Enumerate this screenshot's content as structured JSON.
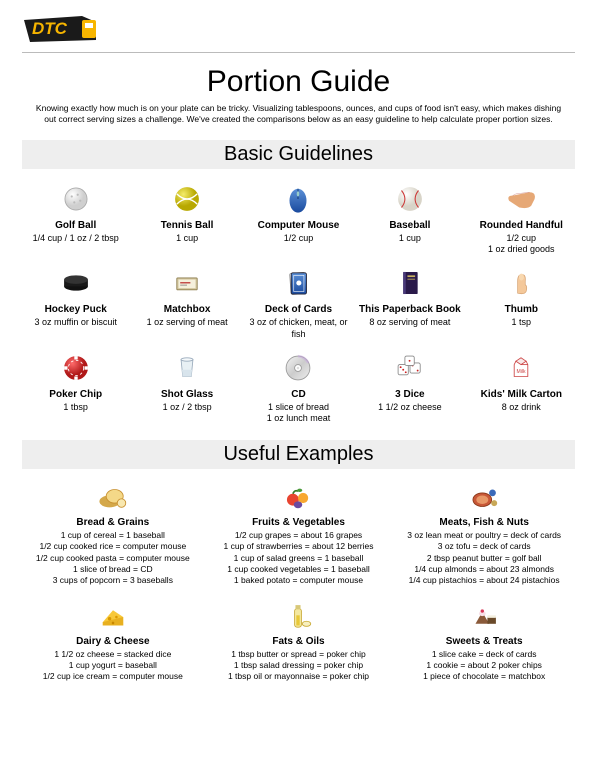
{
  "logo_text": "DTC",
  "title": "Portion Guide",
  "intro": "Knowing exactly how much is on your plate can be tricky. Visualizing tablespoons, ounces, and cups of food isn't easy, which makes dishing out correct serving sizes a challenge. We've created the comparisons below as an easy guideline to help calculate proper portion sizes.",
  "section1_title": "Basic Guidelines",
  "section2_title": "Useful Examples",
  "guidelines": [
    {
      "icon": "golfball",
      "title": "Golf Ball",
      "desc": "1/4 cup / 1 oz / 2 tbsp"
    },
    {
      "icon": "tennisball",
      "title": "Tennis Ball",
      "desc": "1 cup"
    },
    {
      "icon": "mouse",
      "title": "Computer Mouse",
      "desc": "1/2 cup"
    },
    {
      "icon": "baseball",
      "title": "Baseball",
      "desc": "1 cup"
    },
    {
      "icon": "hand",
      "title": "Rounded Handful",
      "desc": "1/2 cup\n1 oz dried goods"
    },
    {
      "icon": "puck",
      "title": "Hockey Puck",
      "desc": "3 oz muffin or biscuit"
    },
    {
      "icon": "matchbox",
      "title": "Matchbox",
      "desc": "1 oz serving of meat"
    },
    {
      "icon": "cards",
      "title": "Deck of Cards",
      "desc": "3 oz of chicken, meat, or fish"
    },
    {
      "icon": "book",
      "title": "This Paperback Book",
      "desc": "8 oz serving of meat"
    },
    {
      "icon": "thumb",
      "title": "Thumb",
      "desc": "1 tsp"
    },
    {
      "icon": "chip",
      "title": "Poker Chip",
      "desc": "1 tbsp"
    },
    {
      "icon": "shotglass",
      "title": "Shot Glass",
      "desc": "1 oz / 2 tbsp"
    },
    {
      "icon": "cd",
      "title": "CD",
      "desc": "1 slice of bread\n1 oz lunch meat"
    },
    {
      "icon": "dice",
      "title": "3 Dice",
      "desc": "1 1/2 oz cheese"
    },
    {
      "icon": "milk",
      "title": "Kids' Milk Carton",
      "desc": "8 oz drink"
    }
  ],
  "examples": [
    {
      "icon": "bread",
      "title": "Bread & Grains",
      "lines": [
        "1 cup of cereal = 1 baseball",
        "1/2 cup cooked rice = computer mouse",
        "1/2 cup cooked pasta = computer mouse",
        "1 slice of bread = CD",
        "3 cups of popcorn = 3 baseballs"
      ]
    },
    {
      "icon": "fruit",
      "title": "Fruits & Vegetables",
      "lines": [
        "1/2 cup grapes = about 16 grapes",
        "1 cup of strawberries = about 12 berries",
        "1 cup of salad greens = 1 baseball",
        "1 cup cooked vegetables = 1 baseball",
        "1 baked potato = computer mouse"
      ]
    },
    {
      "icon": "meat",
      "title": "Meats, Fish & Nuts",
      "lines": [
        "3 oz lean meat or poultry = deck of cards",
        "3 oz tofu = deck of cards",
        "2 tbsp peanut butter = golf ball",
        "1/4 cup almonds = about 23 almonds",
        "1/4 cup pistachios = about 24 pistachios"
      ]
    },
    {
      "icon": "cheese",
      "title": "Dairy & Cheese",
      "lines": [
        "1 1/2 oz cheese = stacked dice",
        "1 cup yogurt = baseball",
        "1/2 cup ice cream = computer mouse"
      ]
    },
    {
      "icon": "oil",
      "title": "Fats & Oils",
      "lines": [
        "1 tbsp butter or spread = poker chip",
        "1 tbsp salad dressing = poker chip",
        "1 tbsp oil or mayonnaise = poker chip"
      ]
    },
    {
      "icon": "sweets",
      "title": "Sweets & Treats",
      "lines": [
        "1 slice cake = deck of cards",
        "1 cookie = about 2 poker chips",
        "1 piece of chocolate = matchbox"
      ]
    }
  ],
  "colors": {
    "logo_bg": "#1a1a1a",
    "logo_accent": "#f7b500",
    "section_bg": "#eeeeee"
  }
}
